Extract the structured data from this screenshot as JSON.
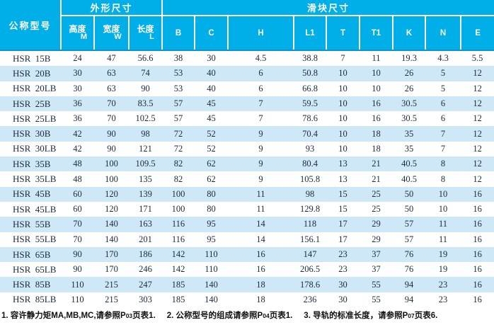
{
  "colors": {
    "accent": "#00afe8",
    "altrow": "#cfe8f8",
    "header-underline": "#0e93c8",
    "ink": "#1c2b3a"
  },
  "table": {
    "model_header": "公称型号",
    "groups": {
      "outer": "外形尺寸",
      "slider": "滑块尺寸"
    },
    "sub_headers": [
      {
        "label": "高度",
        "sub": "M"
      },
      {
        "label": "宽度",
        "sub": "W"
      },
      {
        "label": "长度",
        "sub": "L"
      },
      {
        "label": "B"
      },
      {
        "label": "C"
      },
      {
        "label": "H"
      },
      {
        "label": "L1"
      },
      {
        "label": "T"
      },
      {
        "label": "T1"
      },
      {
        "label": "K"
      },
      {
        "label": "N"
      },
      {
        "label": "E"
      }
    ],
    "rows": [
      {
        "model": "HSR  15B",
        "values": [
          24,
          47,
          56.6,
          38,
          30,
          4.5,
          38.8,
          7,
          11,
          19.3,
          4.3,
          5.5
        ]
      },
      {
        "model": "HSR  20B",
        "values": [
          30,
          63,
          74,
          53,
          40,
          6,
          50.8,
          10,
          10,
          26,
          5,
          12
        ]
      },
      {
        "model": "HSR  20LB",
        "values": [
          30,
          63,
          90,
          53,
          40,
          6,
          66.8,
          10,
          10,
          26,
          5,
          12
        ]
      },
      {
        "model": "HSR  25B",
        "values": [
          36,
          70,
          83.5,
          57,
          45,
          7,
          59.5,
          10,
          16,
          30.5,
          6,
          12
        ]
      },
      {
        "model": "HSR  25LB",
        "values": [
          36,
          70,
          102.5,
          57,
          45,
          7,
          78.6,
          10,
          16,
          30.5,
          6,
          12
        ]
      },
      {
        "model": "HSR  30B",
        "values": [
          42,
          90,
          98,
          72,
          52,
          9,
          70.4,
          10,
          18,
          35,
          7,
          12
        ]
      },
      {
        "model": "HSR  30LB",
        "values": [
          42,
          90,
          121,
          72,
          52,
          9,
          93,
          10,
          18,
          35,
          7,
          12
        ]
      },
      {
        "model": "HSR  35B",
        "values": [
          48,
          100,
          109.5,
          82,
          62,
          9,
          80.4,
          13,
          21,
          40.5,
          8,
          12
        ]
      },
      {
        "model": "HSR  35LB",
        "values": [
          48,
          100,
          135,
          82,
          62,
          9,
          105.8,
          13,
          21,
          40.5,
          8,
          12
        ]
      },
      {
        "model": "HSR  45B",
        "values": [
          60,
          120,
          139,
          100,
          80,
          11,
          98,
          15,
          25,
          50,
          10,
          16
        ]
      },
      {
        "model": "HSR  45LB",
        "values": [
          60,
          120,
          171,
          100,
          80,
          11,
          129.8,
          15,
          25,
          50,
          10,
          16
        ]
      },
      {
        "model": "HSR  55B",
        "values": [
          70,
          140,
          163,
          116,
          95,
          14,
          118,
          17,
          29,
          57,
          11,
          16
        ]
      },
      {
        "model": "HSR  55LB",
        "values": [
          70,
          140,
          201,
          116,
          95,
          14,
          156.1,
          17,
          29,
          57,
          11,
          16
        ]
      },
      {
        "model": "HSR  65B",
        "values": [
          90,
          170,
          186,
          142,
          110,
          16,
          147,
          23,
          37,
          76,
          19,
          16
        ]
      },
      {
        "model": "HSR  65LB",
        "values": [
          90,
          170,
          246,
          142,
          110,
          16,
          206.5,
          23,
          37,
          76,
          19,
          16
        ]
      },
      {
        "model": "HSR  85B",
        "values": [
          110,
          215,
          247,
          185,
          140,
          18,
          178.6,
          30,
          55,
          94,
          23,
          16
        ]
      },
      {
        "model": "HSR  85LB",
        "values": [
          110,
          215,
          303,
          185,
          140,
          18,
          236,
          30,
          55,
          94,
          23,
          16
        ]
      }
    ]
  },
  "notes": [
    {
      "before": "1. 容许静力矩MA,MB,MC,请参照P",
      "small": "03",
      "after": "页表1."
    },
    {
      "before": "2. 公称型号的组成请参照P",
      "small": "04",
      "after": "页表1."
    },
    {
      "before": "3. 导轨的标准长度，请参照P",
      "small": "07",
      "after": "页表6."
    }
  ]
}
